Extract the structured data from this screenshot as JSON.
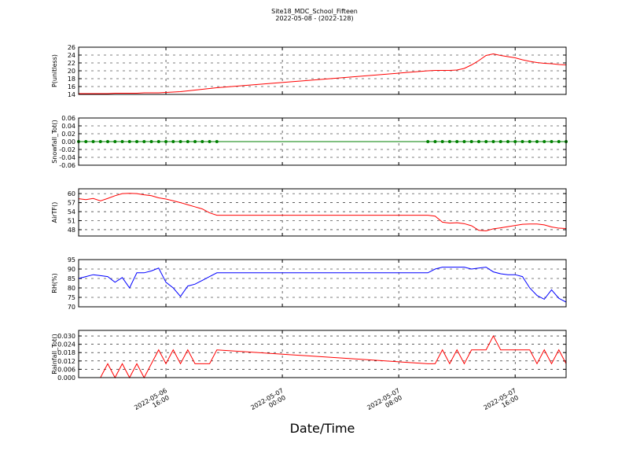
{
  "figure": {
    "title": "Site18_MDC_School_Fifteen",
    "subtitle": "2022-05-08 - (2022-128)",
    "xlabel": "Date/Time",
    "x": [
      "2022-05-06 10:00",
      "2022-05-06 10:30",
      "2022-05-06 11:00",
      "2022-05-06 11:30",
      "2022-05-06 12:00",
      "2022-05-06 12:30",
      "2022-05-06 13:00",
      "2022-05-06 13:30",
      "2022-05-06 14:00",
      "2022-05-06 14:30",
      "2022-05-06 15:00",
      "2022-05-06 15:30",
      "2022-05-06 16:00",
      "2022-05-06 16:30",
      "2022-05-06 17:00",
      "2022-05-06 17:30",
      "2022-05-06 18:00",
      "2022-05-06 18:30",
      "2022-05-06 19:00",
      "2022-05-06 19:30",
      "2022-05-07 10:00",
      "2022-05-07 10:30",
      "2022-05-07 11:00",
      "2022-05-07 11:30",
      "2022-05-07 12:00",
      "2022-05-07 12:30",
      "2022-05-07 13:00",
      "2022-05-07 13:30",
      "2022-05-07 14:00",
      "2022-05-07 14:30",
      "2022-05-07 15:00",
      "2022-05-07 15:30",
      "2022-05-07 16:00",
      "2022-05-07 16:30",
      "2022-05-07 17:00",
      "2022-05-07 17:30",
      "2022-05-07 18:00",
      "2022-05-07 18:30",
      "2022-05-07 19:00",
      "2022-05-07 19:30"
    ],
    "xlim": [
      "2022-05-06 10:00",
      "2022-05-07 19:30"
    ],
    "xticks": [
      "2022-05-06 16:00",
      "2022-05-07 00:00",
      "2022-05-07 08:00",
      "2022-05-07 16:00"
    ]
  },
  "chart_data": [
    {
      "type": "line",
      "ylabel": "P(unitless)",
      "color": "#ff0000",
      "grid": true,
      "ylim": [
        14,
        26
      ],
      "yticks": [
        14,
        16,
        18,
        20,
        22,
        24,
        26
      ],
      "values": [
        14.2,
        14.2,
        14.2,
        14.2,
        14.2,
        14.3,
        14.3,
        14.3,
        14.3,
        14.4,
        14.4,
        14.4,
        14.5,
        14.6,
        14.7,
        14.9,
        15.1,
        15.3,
        15.5,
        15.7,
        20.0,
        20.1,
        20.1,
        20.1,
        20.2,
        20.6,
        21.5,
        22.6,
        23.9,
        24.3,
        23.9,
        23.6,
        23.3,
        22.8,
        22.4,
        22.1,
        21.9,
        21.8,
        21.6,
        21.5
      ]
    },
    {
      "type": "line",
      "ylabel": "Snowfall_Tot()",
      "color": "#008000",
      "marker": "o",
      "grid": true,
      "ylim": [
        -0.06,
        0.06
      ],
      "yticks": [
        -0.06,
        -0.04,
        -0.02,
        {
          "value": 0,
          "label": "0.00"
        },
        0.02,
        0.04,
        0.06
      ],
      "values": [
        0,
        0,
        0,
        0,
        0,
        0,
        0,
        0,
        0,
        0,
        0,
        0,
        0,
        0,
        0,
        0,
        0,
        0,
        0,
        0,
        0,
        0,
        0,
        0,
        0,
        0,
        0,
        0,
        0,
        0,
        0,
        0,
        0,
        0,
        0,
        0,
        0,
        0,
        0,
        0
      ]
    },
    {
      "type": "line",
      "ylabel": "AirTF()",
      "color": "#ff0000",
      "grid": true,
      "ylim": [
        45.9,
        61.6
      ],
      "yticks": [
        48,
        51,
        54,
        57,
        60
      ],
      "values": [
        58.3,
        58.0,
        58.4,
        57.6,
        58.4,
        59.3,
        60.0,
        60.1,
        60.0,
        59.6,
        59.3,
        58.6,
        58.2,
        57.6,
        57.0,
        56.3,
        55.6,
        54.9,
        53.6,
        52.8,
        52.8,
        52.5,
        50.5,
        50.2,
        50.3,
        50.0,
        49.3,
        47.8,
        47.6,
        48.3,
        48.6,
        49.0,
        49.4,
        49.8,
        49.9,
        49.9,
        49.6,
        48.9,
        48.5,
        48.4
      ]
    },
    {
      "type": "line",
      "ylabel": "RH(%)",
      "color": "#0000ff",
      "grid": true,
      "ylim": [
        70,
        95
      ],
      "yticks": [
        70,
        75,
        80,
        85,
        90,
        95
      ],
      "values": [
        85,
        86,
        87,
        86.5,
        86,
        83,
        85.5,
        80,
        88,
        88,
        89,
        90.5,
        83,
        80,
        75.5,
        81,
        82,
        84,
        86,
        88,
        88,
        90,
        91,
        91,
        91,
        91,
        90,
        90.5,
        91,
        88.5,
        87.5,
        87,
        87,
        86,
        80,
        76,
        74,
        79,
        74.5,
        72.5
      ]
    },
    {
      "type": "line",
      "ylabel": "Rainfall_Tot()",
      "color": "#ff0000",
      "grid": true,
      "ylim": [
        0,
        0.034
      ],
      "yticks": [
        {
          "value": 0,
          "label": "0.000"
        },
        {
          "value": 0.006,
          "label": "0.006"
        },
        {
          "value": 0.012,
          "label": "0.012"
        },
        {
          "value": 0.018,
          "label": "0.018"
        },
        {
          "value": 0.024,
          "label": "0.024"
        },
        {
          "value": 0.03,
          "label": "0.030"
        }
      ],
      "values": [
        0,
        0,
        0,
        0,
        0.01,
        0,
        0.01,
        0,
        0.01,
        0,
        0.01,
        0.02,
        0.01,
        0.02,
        0.01,
        0.02,
        0.01,
        0.01,
        0.01,
        0.02,
        0.01,
        0.01,
        0.02,
        0.01,
        0.02,
        0.01,
        0.02,
        0.02,
        0.02,
        0.03,
        0.02,
        0.02,
        0.02,
        0.02,
        0.02,
        0.01,
        0.02,
        0.01,
        0.02,
        0.01
      ]
    }
  ]
}
